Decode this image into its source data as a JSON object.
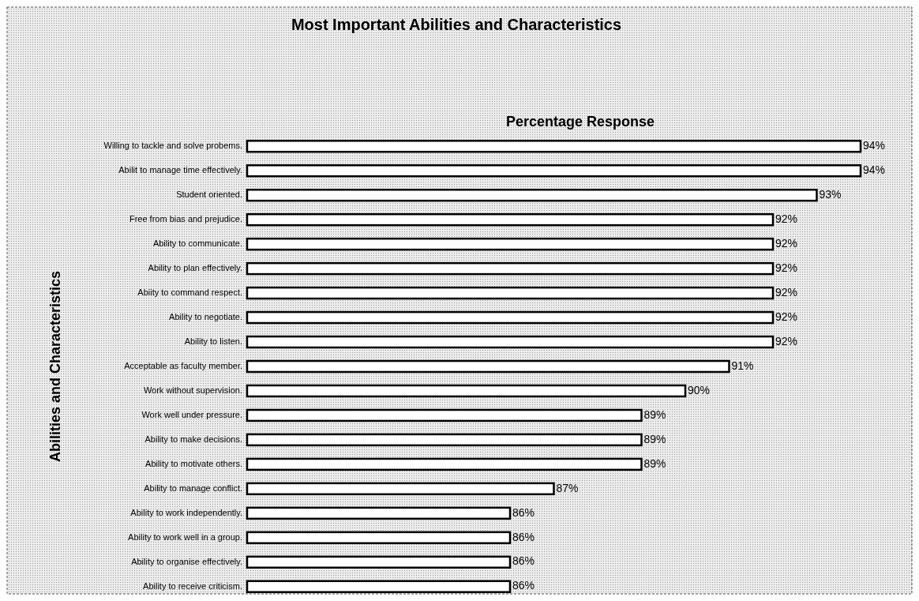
{
  "chart_data": {
    "type": "bar",
    "orientation": "horizontal",
    "title": "Most Important Abilities and Characteristics",
    "xlabel": "Percentage Response",
    "ylabel": "Abilities and Characteristics",
    "categories": [
      "Willing to tackle and solve probems.",
      "Abilit to manage time effectively.",
      "Student oriented.",
      "Free from bias and prejudice.",
      "Ability to communicate.",
      "Ability to plan effectively.",
      "Abiity to command respect.",
      "Ability to negotiate.",
      "Ability to listen.",
      "Acceptable as faculty member.",
      "Work without supervision.",
      "Work well under pressure.",
      "Ability to make decisions.",
      "Ability to motivate others.",
      "Ability to manage conflict.",
      "Ability to work independently.",
      "Ability to work well in a group.",
      "Ability to organise effectively.",
      "Ability to receive criticism."
    ],
    "values": [
      94,
      94,
      93,
      92,
      92,
      92,
      92,
      92,
      92,
      91,
      90,
      89,
      89,
      89,
      87,
      86,
      86,
      86,
      86
    ],
    "value_labels": [
      "94%",
      "94%",
      "93%",
      "92%",
      "92%",
      "92%",
      "92%",
      "92%",
      "92%",
      "91%",
      "90%",
      "89%",
      "89%",
      "89%",
      "87%",
      "86%",
      "86%",
      "86%",
      "86%"
    ],
    "color": "#ffffff",
    "xlim": [
      80,
      94
    ]
  }
}
